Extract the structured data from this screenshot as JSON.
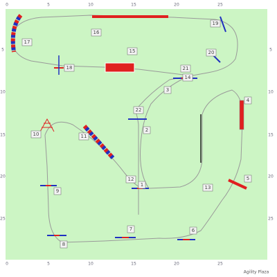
{
  "axis": {
    "top": [
      "0",
      "5",
      "10",
      "15",
      "20",
      "25"
    ],
    "left": [
      "5",
      "10",
      "15",
      "20",
      "25"
    ]
  },
  "obstacles": [
    {
      "label": "1"
    },
    {
      "label": "2"
    },
    {
      "label": "3"
    },
    {
      "label": "4"
    },
    {
      "label": "5"
    },
    {
      "label": "6"
    },
    {
      "label": "7"
    },
    {
      "label": "8"
    },
    {
      "label": "9"
    },
    {
      "label": "10"
    },
    {
      "label": "11"
    },
    {
      "label": "12"
    },
    {
      "label": "13"
    },
    {
      "label": "14"
    },
    {
      "label": "15"
    },
    {
      "label": "16"
    },
    {
      "label": "17"
    },
    {
      "label": "18"
    },
    {
      "label": "19"
    },
    {
      "label": "20"
    },
    {
      "label": "21"
    },
    {
      "label": "22"
    }
  ],
  "footer": "Agility Plaza"
}
